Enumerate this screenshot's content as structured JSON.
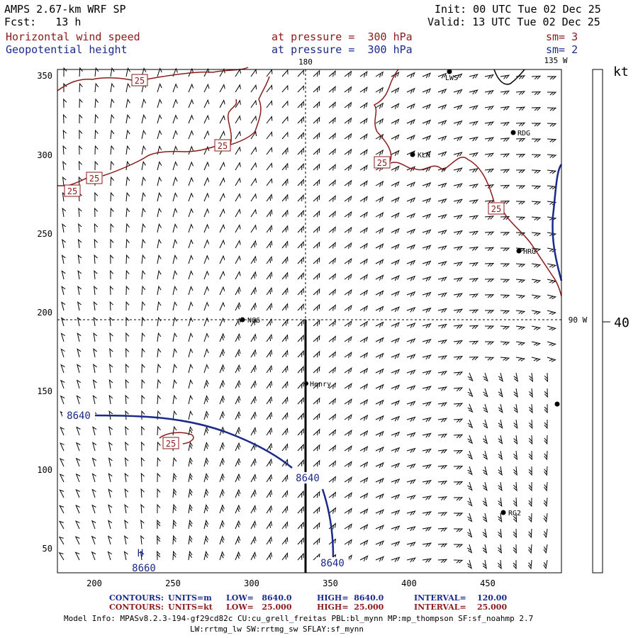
{
  "header": {
    "model": "AMPS 2.67-km WRF SP",
    "init": "Init: 00 UTC Tue 02 Dec 25",
    "fcst": "Fcst:   13 h",
    "valid": "Valid: 13 UTC Tue 02 Dec 25",
    "field1_name": "Horizontal wind speed",
    "field1_level": "at pressure =  300 hPa",
    "field1_sm": "sm= 3",
    "field2_name": "Geopotential height",
    "field2_level": "at pressure =  300 hPa",
    "field2_sm": "sm= 2"
  },
  "map": {
    "x_ticks": [
      "200",
      "250",
      "300",
      "350",
      "400",
      "450"
    ],
    "y_ticks": [
      "350",
      "300",
      "250",
      "200",
      "150",
      "100",
      "50"
    ],
    "lon_180_label": "180",
    "lon_135w_label": "135 W",
    "lon_90w_label": "90 W",
    "stations": [
      {
        "name": "LWS"
      },
      {
        "name": "RDG"
      },
      {
        "name": "KLN"
      },
      {
        "name": "NGG"
      },
      {
        "name": "Henry"
      },
      {
        "name": "RG2"
      },
      {
        "name": "HRG"
      },
      {
        "name": ""
      }
    ],
    "wind_labels": [
      "25",
      "25",
      "25",
      "25",
      "25",
      "25",
      "25"
    ],
    "height_labels": [
      "8640",
      "8640",
      "8640"
    ],
    "high_low_marker": "H",
    "high_low_value": "8660",
    "colors": {
      "wind": "#8b1a1a",
      "height": "#1a2a8b",
      "barb": "#000000"
    }
  },
  "colorbar": {
    "unit": "kt",
    "value": "40"
  },
  "legend": {
    "row1": {
      "label": "CONTOURS:",
      "units": "UNITS=m",
      "low": "LOW=   8640.0",
      "high": "HIGH=  8640.0",
      "interval": "INTERVAL=    120.00"
    },
    "row2": {
      "label": "CONTOURS:",
      "units": "UNITS=kt",
      "low": "LOW=   25.000",
      "high": "HIGH=  25.000",
      "interval": "INTERVAL=    25.000"
    }
  },
  "model_info": {
    "line1": "Model Info: MPASv8.2.3-194-gf29cd82c CU:cu_grell_freitas PBL:bl_mynn MP:mp_thompson SF:sf_noahmp 2.7",
    "line2": "LW:rrtmg_lw SW:rrtmg_sw SFLAY:sf_mynn"
  }
}
